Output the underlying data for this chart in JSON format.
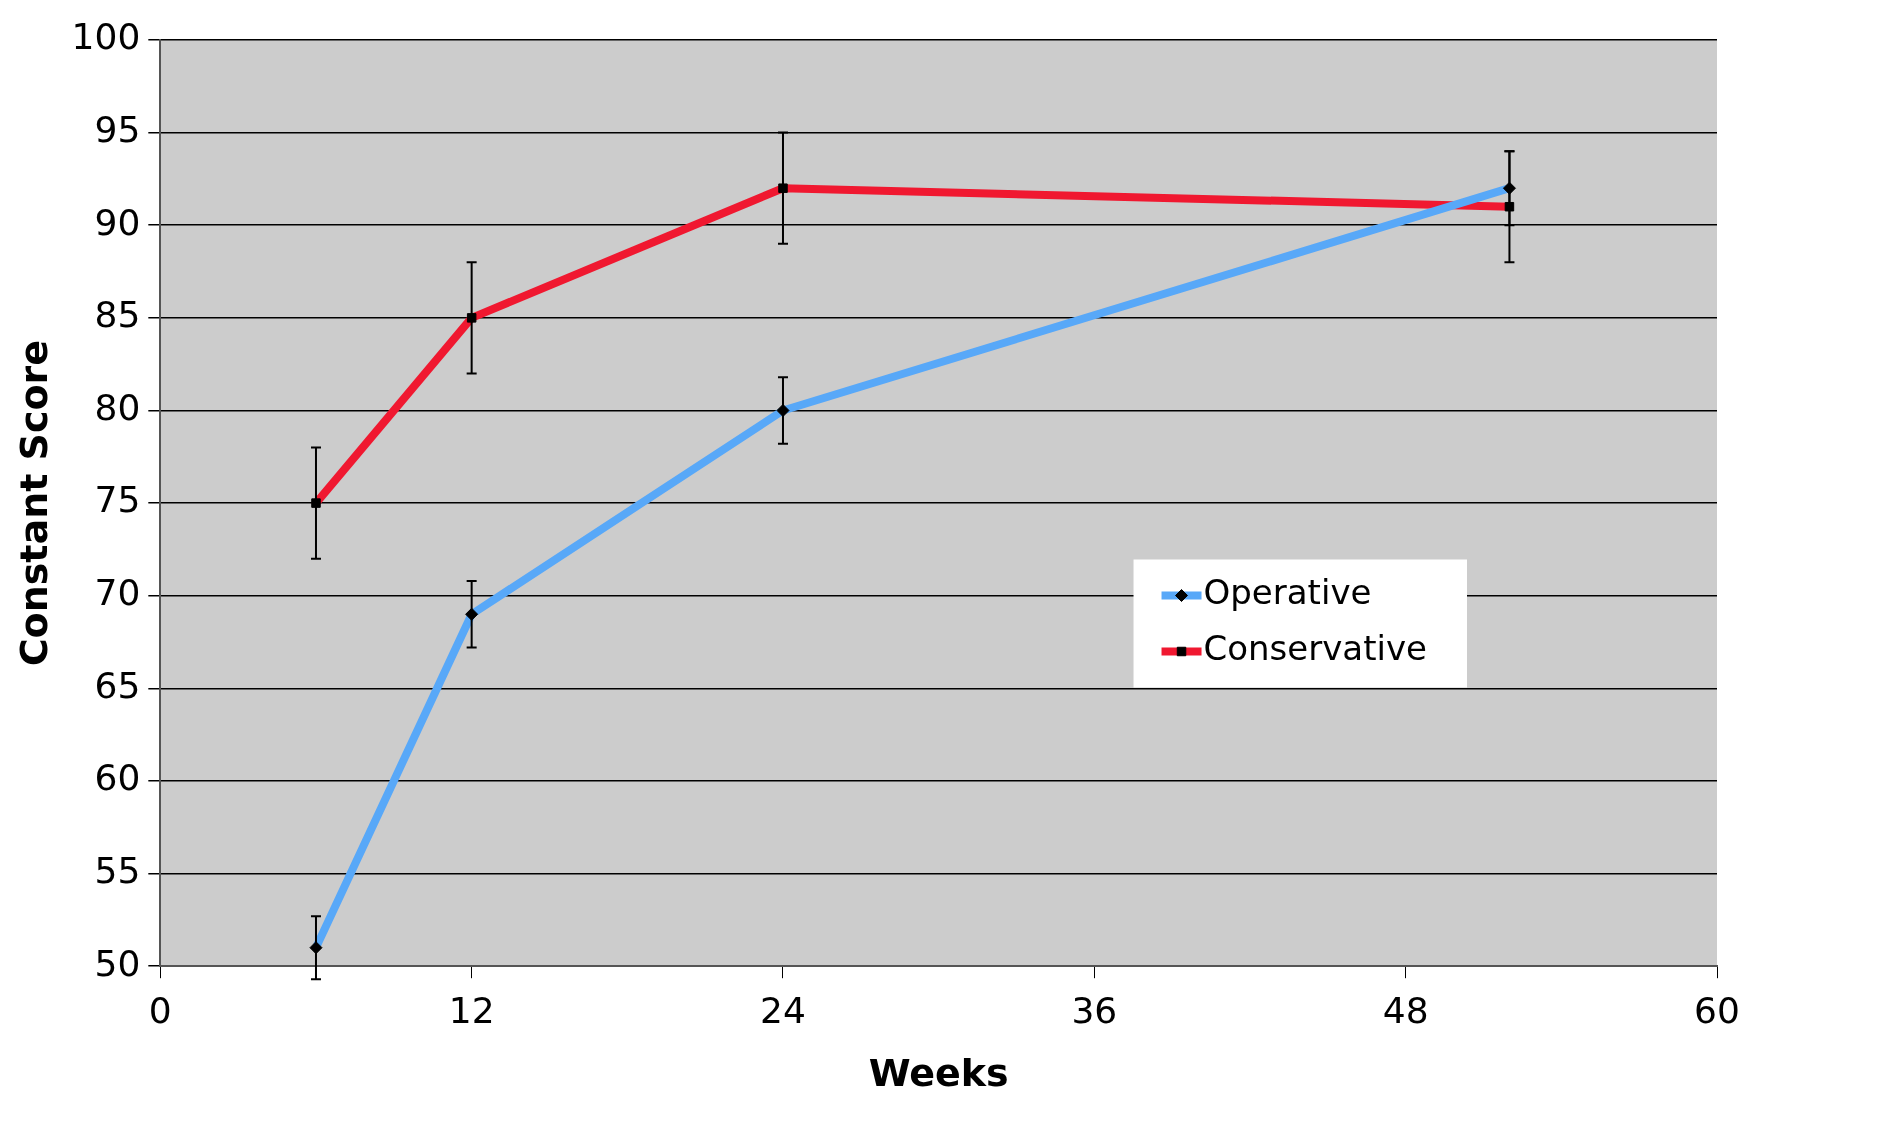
{
  "chart_data": {
    "type": "line",
    "xlabel": "Weeks",
    "ylabel": "Constant Score",
    "x": [
      6,
      12,
      24,
      52
    ],
    "series": [
      {
        "name": "Operative",
        "color": "#58a8f8",
        "values": [
          51,
          69,
          80,
          92
        ],
        "errors": [
          1.7,
          1.8,
          1.8,
          2
        ],
        "marker": "diamond"
      },
      {
        "name": "Conservative",
        "color": "#f01830",
        "values": [
          75,
          85,
          92,
          91
        ],
        "errors": [
          3,
          3,
          3,
          3
        ],
        "marker": "square"
      }
    ],
    "xlim": [
      0,
      60
    ],
    "xticks": [
      0,
      12,
      24,
      36,
      48,
      60
    ],
    "ylim": [
      50,
      100
    ],
    "yticks": [
      50,
      55,
      60,
      65,
      70,
      75,
      80,
      85,
      90,
      95,
      100
    ],
    "grid": "y",
    "legend": "right"
  }
}
